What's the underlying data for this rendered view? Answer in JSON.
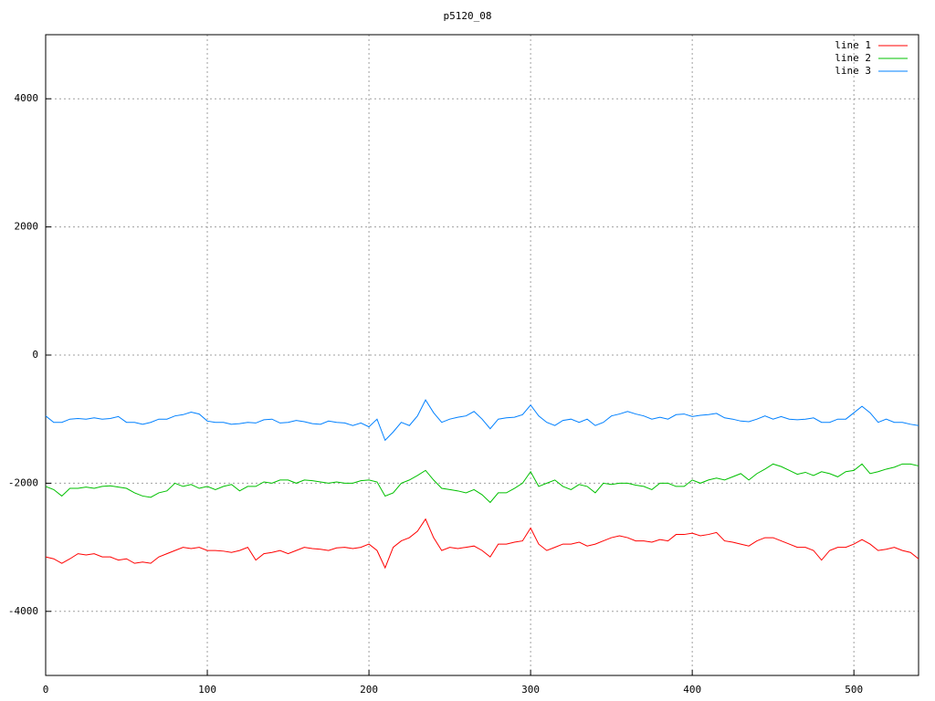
{
  "chart_data": {
    "type": "line",
    "title": "p5120_08",
    "x": [
      0,
      5,
      10,
      15,
      20,
      25,
      30,
      35,
      40,
      45,
      50,
      55,
      60,
      65,
      70,
      75,
      80,
      85,
      90,
      95,
      100,
      105,
      110,
      115,
      120,
      125,
      130,
      135,
      140,
      145,
      150,
      155,
      160,
      165,
      170,
      175,
      180,
      185,
      190,
      195,
      200,
      205,
      210,
      215,
      220,
      225,
      230,
      235,
      240,
      245,
      250,
      255,
      260,
      265,
      270,
      275,
      280,
      285,
      290,
      295,
      300,
      305,
      310,
      315,
      320,
      325,
      330,
      335,
      340,
      345,
      350,
      355,
      360,
      365,
      370,
      375,
      380,
      385,
      390,
      395,
      400,
      405,
      410,
      415,
      420,
      425,
      430,
      435,
      440,
      445,
      450,
      455,
      460,
      465,
      470,
      475,
      480,
      485,
      490,
      495,
      500,
      505,
      510,
      515,
      520,
      525,
      530,
      535,
      540
    ],
    "series": [
      {
        "name": "line 1",
        "color": "#ff0000",
        "values": [
          -3150,
          -3180,
          -3250,
          -3180,
          -3100,
          -3120,
          -3100,
          -3150,
          -3150,
          -3200,
          -3180,
          -3250,
          -3230,
          -3250,
          -3150,
          -3100,
          -3050,
          -3000,
          -3020,
          -3000,
          -3050,
          -3050,
          -3060,
          -3080,
          -3050,
          -3000,
          -3200,
          -3100,
          -3080,
          -3050,
          -3100,
          -3050,
          -3000,
          -3020,
          -3030,
          -3050,
          -3010,
          -3000,
          -3020,
          -3000,
          -2950,
          -3050,
          -3320,
          -3000,
          -2900,
          -2850,
          -2750,
          -2560,
          -2850,
          -3050,
          -3000,
          -3020,
          -3000,
          -2980,
          -3050,
          -3150,
          -2950,
          -2950,
          -2920,
          -2900,
          -2700,
          -2950,
          -3050,
          -3000,
          -2950,
          -2950,
          -2920,
          -2980,
          -2950,
          -2900,
          -2850,
          -2820,
          -2850,
          -2900,
          -2900,
          -2920,
          -2880,
          -2900,
          -2800,
          -2800,
          -2780,
          -2820,
          -2800,
          -2770,
          -2900,
          -2920,
          -2950,
          -2980,
          -2900,
          -2850,
          -2850,
          -2900,
          -2950,
          -3000,
          -3000,
          -3050,
          -3200,
          -3050,
          -3000,
          -3000,
          -2950,
          -2880,
          -2950,
          -3050,
          -3030,
          -3000,
          -3050,
          -3080,
          -3180
        ]
      },
      {
        "name": "line 2",
        "color": "#00c000",
        "values": [
          -2050,
          -2100,
          -2200,
          -2080,
          -2080,
          -2060,
          -2080,
          -2050,
          -2040,
          -2060,
          -2080,
          -2150,
          -2200,
          -2220,
          -2150,
          -2120,
          -2000,
          -2050,
          -2020,
          -2080,
          -2050,
          -2100,
          -2050,
          -2020,
          -2120,
          -2050,
          -2050,
          -1980,
          -2000,
          -1950,
          -1950,
          -2000,
          -1950,
          -1960,
          -1980,
          -2000,
          -1980,
          -2000,
          -2000,
          -1960,
          -1950,
          -1980,
          -2200,
          -2150,
          -2000,
          -1950,
          -1880,
          -1800,
          -1950,
          -2080,
          -2100,
          -2120,
          -2150,
          -2100,
          -2180,
          -2300,
          -2150,
          -2150,
          -2080,
          -2000,
          -1820,
          -2050,
          -2000,
          -1950,
          -2050,
          -2100,
          -2020,
          -2050,
          -2150,
          -2000,
          -2020,
          -2000,
          -2000,
          -2030,
          -2050,
          -2100,
          -2000,
          -2000,
          -2050,
          -2050,
          -1950,
          -2000,
          -1950,
          -1920,
          -1950,
          -1900,
          -1850,
          -1950,
          -1850,
          -1780,
          -1700,
          -1740,
          -1800,
          -1860,
          -1830,
          -1880,
          -1820,
          -1850,
          -1900,
          -1820,
          -1800,
          -1700,
          -1850,
          -1820,
          -1780,
          -1750,
          -1700,
          -1700,
          -1730
        ]
      },
      {
        "name": "line 3",
        "color": "#0080ff",
        "values": [
          -950,
          -1050,
          -1050,
          -1000,
          -990,
          -1000,
          -980,
          -1000,
          -990,
          -960,
          -1050,
          -1050,
          -1080,
          -1050,
          -1000,
          -1000,
          -950,
          -930,
          -890,
          -920,
          -1030,
          -1050,
          -1050,
          -1080,
          -1070,
          -1050,
          -1060,
          -1010,
          -1000,
          -1060,
          -1050,
          -1020,
          -1040,
          -1070,
          -1080,
          -1030,
          -1050,
          -1060,
          -1100,
          -1060,
          -1120,
          -1000,
          -1330,
          -1200,
          -1050,
          -1100,
          -950,
          -700,
          -900,
          -1050,
          -1000,
          -970,
          -950,
          -880,
          -1000,
          -1150,
          -1000,
          -980,
          -970,
          -930,
          -780,
          -950,
          -1050,
          -1100,
          -1020,
          -1000,
          -1050,
          -1000,
          -1100,
          -1050,
          -950,
          -920,
          -880,
          -920,
          -950,
          -1000,
          -970,
          -1000,
          -930,
          -920,
          -960,
          -940,
          -930,
          -910,
          -980,
          -1000,
          -1030,
          -1040,
          -1000,
          -950,
          -1000,
          -960,
          -1000,
          -1010,
          -1000,
          -980,
          -1050,
          -1050,
          -1000,
          -1000,
          -900,
          -800,
          -900,
          -1050,
          -1000,
          -1050,
          -1050,
          -1080,
          -1100
        ]
      }
    ],
    "xlim": [
      0,
      540
    ],
    "xticks": [
      0,
      100,
      200,
      300,
      400,
      500
    ],
    "ylim": [
      -5000,
      5000
    ],
    "yticks": [
      -4000,
      -2000,
      0,
      2000,
      4000
    ],
    "grid": true,
    "legend": "upper right"
  }
}
